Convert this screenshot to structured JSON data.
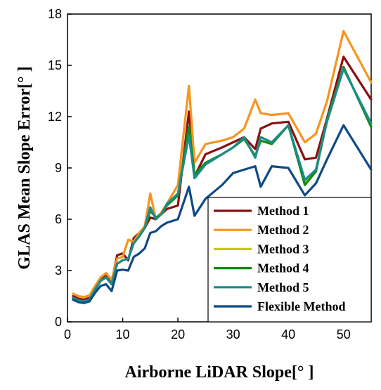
{
  "chart_data": {
    "type": "line",
    "title": "",
    "xlabel": "Airborne LiDAR Slope[°  ]",
    "ylabel": "GLAS Mean Slope Error[°  ]",
    "xlim": [
      0,
      55
    ],
    "ylim": [
      0,
      18
    ],
    "xticks": [
      0,
      10,
      20,
      30,
      40,
      50
    ],
    "yticks": [
      0,
      3,
      6,
      9,
      12,
      15,
      18
    ],
    "grid": false,
    "legend_position": "bottom-right",
    "series": [
      {
        "name": "Method 1",
        "color": "#8b0f12",
        "points": [
          [
            1,
            1.5
          ],
          [
            2,
            1.35
          ],
          [
            3,
            1.3
          ],
          [
            4,
            1.4
          ],
          [
            5,
            2.0
          ],
          [
            6,
            2.5
          ],
          [
            7,
            2.7
          ],
          [
            8,
            2.3
          ],
          [
            9,
            3.9
          ],
          [
            10,
            4.0
          ],
          [
            11,
            3.6
          ],
          [
            12,
            4.9
          ],
          [
            13,
            5.2
          ],
          [
            14,
            5.5
          ],
          [
            15,
            6.1
          ],
          [
            16,
            6.0
          ],
          [
            17,
            6.3
          ],
          [
            18,
            6.6
          ],
          [
            20,
            6.8
          ],
          [
            22,
            12.3
          ],
          [
            23,
            8.5
          ],
          [
            25,
            9.8
          ],
          [
            28,
            10.2
          ],
          [
            30,
            10.5
          ],
          [
            32,
            10.8
          ],
          [
            34,
            10.1
          ],
          [
            35,
            11.3
          ],
          [
            37,
            11.6
          ],
          [
            40,
            11.7
          ],
          [
            43,
            9.5
          ],
          [
            45,
            9.6
          ],
          [
            47,
            11.9
          ],
          [
            50,
            15.5
          ],
          [
            55,
            13.0
          ]
        ]
      },
      {
        "name": "Method 2",
        "color": "#f7941d",
        "points": [
          [
            1,
            1.65
          ],
          [
            2,
            1.5
          ],
          [
            3,
            1.45
          ],
          [
            4,
            1.55
          ],
          [
            5,
            2.1
          ],
          [
            6,
            2.6
          ],
          [
            7,
            2.85
          ],
          [
            8,
            2.45
          ],
          [
            9,
            3.7
          ],
          [
            10,
            3.8
          ],
          [
            11,
            4.8
          ],
          [
            12,
            4.7
          ],
          [
            13,
            5.2
          ],
          [
            14,
            5.6
          ],
          [
            15,
            7.5
          ],
          [
            16,
            6.0
          ],
          [
            17,
            6.4
          ],
          [
            18,
            6.9
          ],
          [
            20,
            8.0
          ],
          [
            22,
            13.8
          ],
          [
            23,
            9.3
          ],
          [
            25,
            10.4
          ],
          [
            28,
            10.6
          ],
          [
            30,
            10.8
          ],
          [
            32,
            11.3
          ],
          [
            34,
            13.0
          ],
          [
            35,
            12.2
          ],
          [
            37,
            12.1
          ],
          [
            40,
            12.2
          ],
          [
            43,
            10.5
          ],
          [
            45,
            11.0
          ],
          [
            47,
            12.9
          ],
          [
            50,
            17.0
          ],
          [
            55,
            14.0
          ]
        ]
      },
      {
        "name": "Method 3",
        "color": "#c8c800",
        "points": [
          [
            1,
            1.4
          ],
          [
            2,
            1.25
          ],
          [
            3,
            1.2
          ],
          [
            4,
            1.3
          ],
          [
            5,
            1.9
          ],
          [
            6,
            2.4
          ],
          [
            7,
            2.6
          ],
          [
            8,
            2.2
          ],
          [
            9,
            3.4
          ],
          [
            10,
            3.6
          ],
          [
            11,
            3.7
          ],
          [
            12,
            4.6
          ],
          [
            13,
            5.0
          ],
          [
            14,
            5.5
          ],
          [
            15,
            6.5
          ],
          [
            16,
            6.1
          ],
          [
            17,
            6.3
          ],
          [
            18,
            6.8
          ],
          [
            20,
            7.4
          ],
          [
            22,
            11.4
          ],
          [
            23,
            8.6
          ],
          [
            25,
            9.3
          ],
          [
            28,
            9.8
          ],
          [
            30,
            10.2
          ],
          [
            32,
            10.7
          ],
          [
            34,
            9.7
          ],
          [
            35,
            10.6
          ],
          [
            37,
            10.4
          ],
          [
            40,
            11.5
          ],
          [
            43,
            8.1
          ],
          [
            45,
            8.9
          ],
          [
            47,
            11.8
          ],
          [
            50,
            14.9
          ],
          [
            55,
            11.4
          ]
        ]
      },
      {
        "name": "Method 4",
        "color": "#108a10",
        "points": [
          [
            1,
            1.4
          ],
          [
            2,
            1.25
          ],
          [
            3,
            1.2
          ],
          [
            4,
            1.3
          ],
          [
            5,
            1.9
          ],
          [
            6,
            2.4
          ],
          [
            7,
            2.6
          ],
          [
            8,
            2.2
          ],
          [
            9,
            3.4
          ],
          [
            10,
            3.6
          ],
          [
            11,
            3.7
          ],
          [
            12,
            4.6
          ],
          [
            13,
            5.0
          ],
          [
            14,
            5.5
          ],
          [
            15,
            6.5
          ],
          [
            16,
            6.1
          ],
          [
            17,
            6.3
          ],
          [
            18,
            6.8
          ],
          [
            20,
            7.4
          ],
          [
            22,
            11.4
          ],
          [
            23,
            8.6
          ],
          [
            25,
            9.3
          ],
          [
            28,
            9.8
          ],
          [
            30,
            10.2
          ],
          [
            32,
            10.7
          ],
          [
            34,
            9.7
          ],
          [
            35,
            10.6
          ],
          [
            37,
            10.4
          ],
          [
            40,
            11.5
          ],
          [
            43,
            8.0
          ],
          [
            45,
            8.8
          ],
          [
            47,
            11.8
          ],
          [
            50,
            14.9
          ],
          [
            55,
            11.4
          ]
        ]
      },
      {
        "name": "Method 5",
        "color": "#1b8c8c",
        "points": [
          [
            1,
            1.4
          ],
          [
            2,
            1.25
          ],
          [
            3,
            1.2
          ],
          [
            4,
            1.3
          ],
          [
            5,
            1.9
          ],
          [
            6,
            2.4
          ],
          [
            7,
            2.6
          ],
          [
            8,
            2.2
          ],
          [
            9,
            3.4
          ],
          [
            10,
            3.6
          ],
          [
            11,
            3.7
          ],
          [
            12,
            4.6
          ],
          [
            13,
            5.0
          ],
          [
            14,
            5.5
          ],
          [
            15,
            6.7
          ],
          [
            16,
            6.0
          ],
          [
            17,
            6.3
          ],
          [
            18,
            6.9
          ],
          [
            20,
            7.5
          ],
          [
            22,
            10.9
          ],
          [
            23,
            8.4
          ],
          [
            25,
            9.2
          ],
          [
            28,
            9.8
          ],
          [
            30,
            10.2
          ],
          [
            32,
            10.8
          ],
          [
            34,
            9.6
          ],
          [
            35,
            10.8
          ],
          [
            37,
            10.5
          ],
          [
            40,
            11.5
          ],
          [
            43,
            8.3
          ],
          [
            45,
            8.9
          ],
          [
            47,
            11.7
          ],
          [
            50,
            14.8
          ],
          [
            55,
            11.6
          ]
        ]
      },
      {
        "name": "Flexible Method",
        "color": "#0e4a86",
        "points": [
          [
            1,
            1.3
          ],
          [
            2,
            1.15
          ],
          [
            3,
            1.1
          ],
          [
            4,
            1.2
          ],
          [
            5,
            1.7
          ],
          [
            6,
            2.1
          ],
          [
            7,
            2.2
          ],
          [
            8,
            1.8
          ],
          [
            9,
            3.0
          ],
          [
            10,
            3.05
          ],
          [
            11,
            3.0
          ],
          [
            12,
            3.8
          ],
          [
            13,
            4.0
          ],
          [
            14,
            4.3
          ],
          [
            15,
            5.2
          ],
          [
            16,
            5.3
          ],
          [
            17,
            5.6
          ],
          [
            18,
            5.8
          ],
          [
            20,
            6.0
          ],
          [
            22,
            7.9
          ],
          [
            23,
            6.2
          ],
          [
            25,
            7.2
          ],
          [
            28,
            8.0
          ],
          [
            30,
            8.7
          ],
          [
            32,
            8.9
          ],
          [
            34,
            9.1
          ],
          [
            35,
            7.9
          ],
          [
            37,
            9.1
          ],
          [
            40,
            9.0
          ],
          [
            43,
            7.4
          ],
          [
            45,
            8.1
          ],
          [
            47,
            9.5
          ],
          [
            50,
            11.5
          ],
          [
            55,
            8.9
          ]
        ]
      }
    ]
  }
}
